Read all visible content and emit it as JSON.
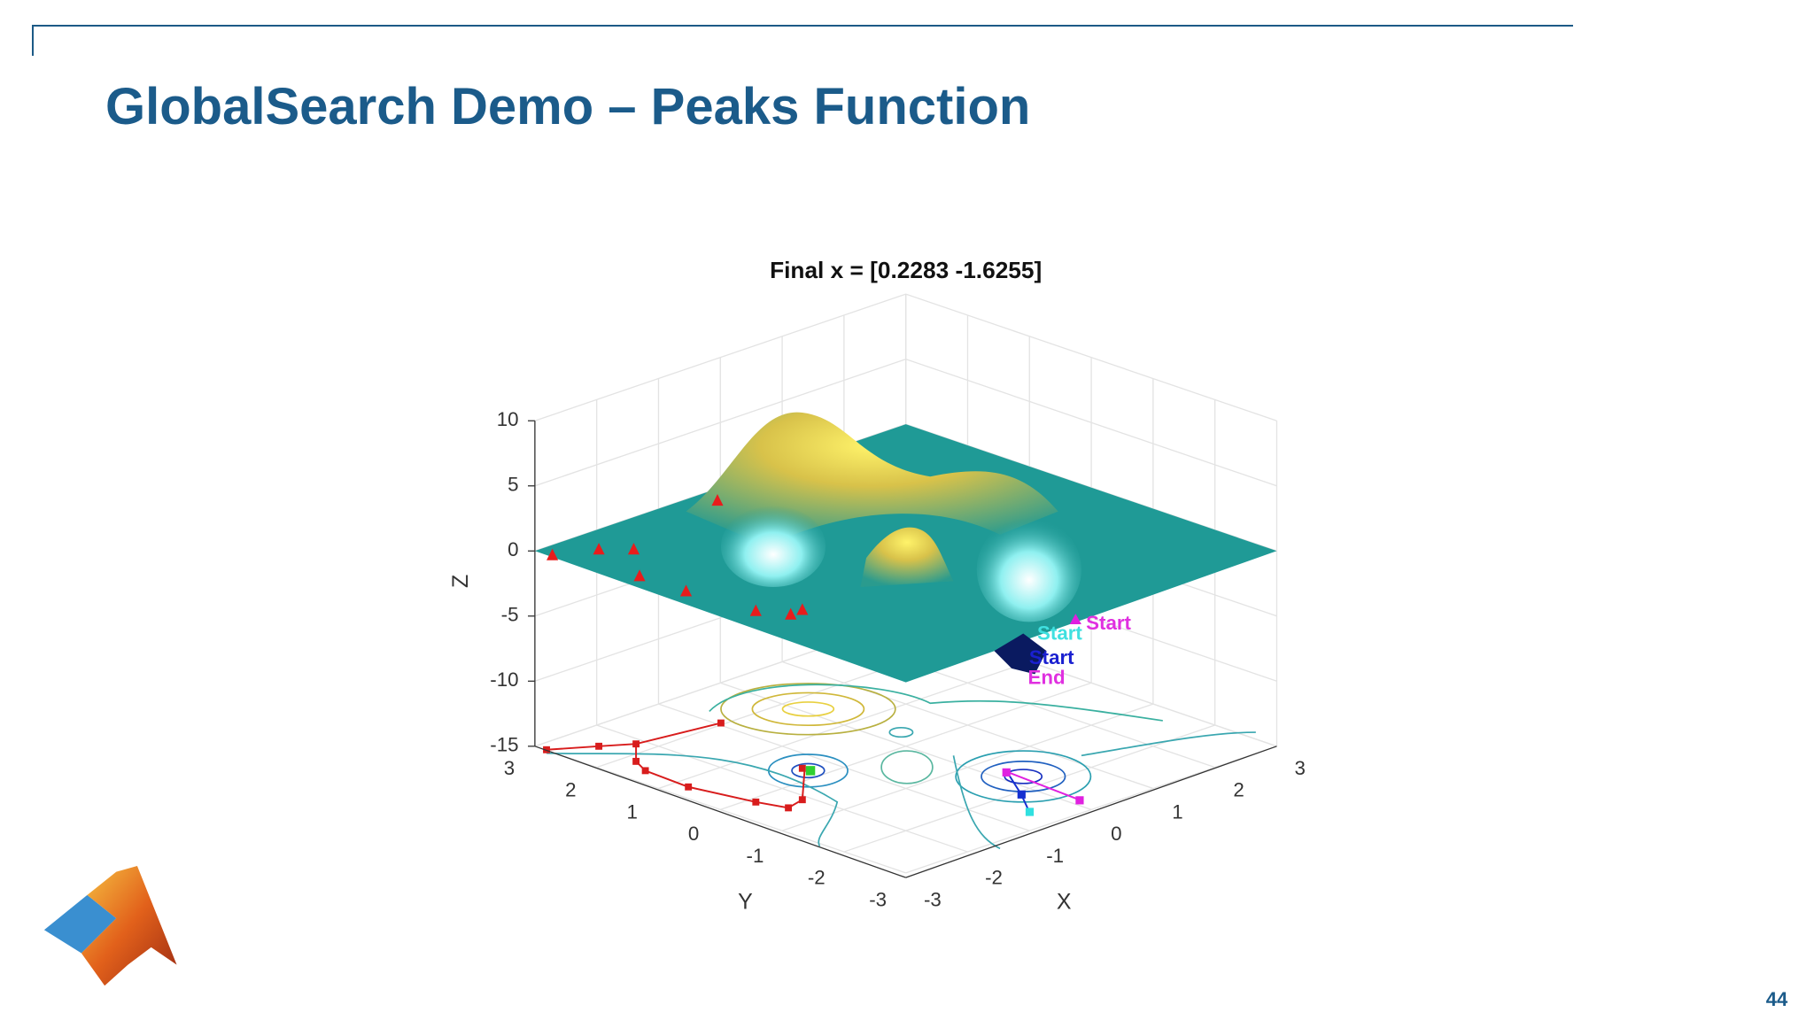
{
  "slide": {
    "title": "GlobalSearch Demo – Peaks Function",
    "page_number": "44"
  },
  "figure": {
    "title": "Final x = [0.2283 -1.6255]",
    "z_label": "Z",
    "y_label": "Y",
    "x_label": "X",
    "z_ticks": [
      10,
      5,
      0,
      -5,
      -10,
      -15
    ],
    "y_ticks": [
      3,
      2,
      1,
      0,
      -1,
      -2,
      -3
    ],
    "x_ticks": [
      -3,
      -2,
      -1,
      0,
      1,
      2,
      3
    ],
    "annotations": [
      "Start",
      "Start",
      "Start",
      "End"
    ]
  }
}
